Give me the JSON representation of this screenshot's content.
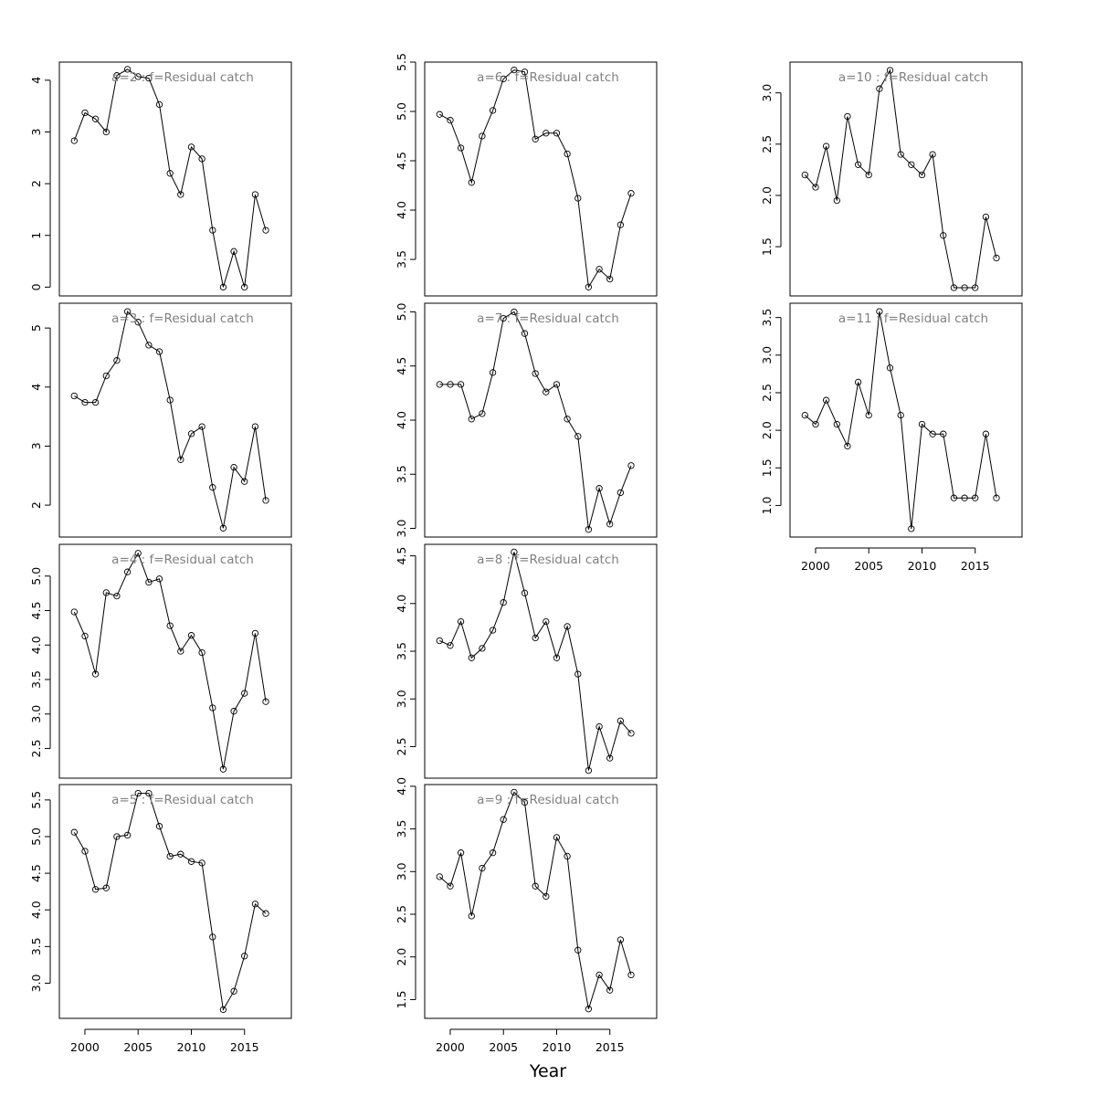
{
  "figure": {
    "xlabel": "Year"
  },
  "chart_data": [
    {
      "type": "line",
      "title": "a=2  :  f=Residual catch",
      "x": [
        1999,
        2000,
        2001,
        2002,
        2003,
        2004,
        2005,
        2006,
        2007,
        2008,
        2009,
        2010,
        2011,
        2012,
        2013,
        2014,
        2015,
        2016,
        2017
      ],
      "values": [
        2.83,
        3.37,
        3.25,
        3.0,
        4.09,
        4.21,
        4.07,
        4.04,
        3.53,
        2.2,
        1.79,
        2.71,
        2.48,
        1.1,
        0.0,
        0.69,
        0.0,
        1.79,
        1.1
      ],
      "xlim": [
        1997.6,
        2019.4
      ],
      "ylim": [
        -0.17,
        4.35
      ],
      "yticks": [
        0,
        1,
        2,
        3,
        4
      ],
      "ytick_labels": [
        "0",
        "1",
        "2",
        "3",
        "4"
      ],
      "xticks": [
        2000,
        2005,
        2010,
        2015
      ],
      "xtick_labels": []
    },
    {
      "type": "line",
      "title": "a=3  :  f=Residual catch",
      "x": [
        1999,
        2000,
        2001,
        2002,
        2003,
        2004,
        2005,
        2006,
        2007,
        2008,
        2009,
        2010,
        2011,
        2012,
        2013,
        2014,
        2015,
        2016,
        2017
      ],
      "values": [
        3.85,
        3.74,
        3.74,
        4.19,
        4.45,
        5.28,
        5.1,
        4.71,
        4.6,
        3.78,
        2.77,
        3.21,
        3.33,
        2.3,
        1.61,
        2.64,
        2.4,
        3.33,
        2.08
      ],
      "xlim": [
        1997.6,
        2019.4
      ],
      "ylim": [
        1.46,
        5.42
      ],
      "yticks": [
        2,
        3,
        4,
        5
      ],
      "ytick_labels": [
        "2",
        "3",
        "4",
        "5"
      ],
      "xticks": [
        2000,
        2005,
        2010,
        2015
      ],
      "xtick_labels": []
    },
    {
      "type": "line",
      "title": "a=4  :  f=Residual catch",
      "x": [
        1999,
        2000,
        2001,
        2002,
        2003,
        2004,
        2005,
        2006,
        2007,
        2008,
        2009,
        2010,
        2011,
        2012,
        2013,
        2014,
        2015,
        2016,
        2017
      ],
      "values": [
        4.48,
        4.13,
        3.58,
        4.76,
        4.71,
        5.06,
        5.33,
        4.91,
        4.96,
        4.28,
        3.91,
        4.14,
        3.89,
        3.09,
        2.2,
        3.04,
        3.3,
        4.17,
        3.18
      ],
      "xlim": [
        1997.6,
        2019.4
      ],
      "ylim": [
        2.07,
        5.46
      ],
      "yticks": [
        2.5,
        3.0,
        3.5,
        4.0,
        4.5,
        5.0
      ],
      "ytick_labels": [
        "2.5",
        "3.0",
        "3.5",
        "4.0",
        "4.5",
        "5.0"
      ],
      "xticks": [
        2000,
        2005,
        2010,
        2015
      ],
      "xtick_labels": []
    },
    {
      "type": "line",
      "title": "a=5  :  f=Residual catch",
      "x": [
        1999,
        2000,
        2001,
        2002,
        2003,
        2004,
        2005,
        2006,
        2007,
        2008,
        2009,
        2010,
        2011,
        2012,
        2013,
        2014,
        2015,
        2016,
        2017
      ],
      "values": [
        5.06,
        4.8,
        4.28,
        4.3,
        5.0,
        5.02,
        5.59,
        5.59,
        5.14,
        4.73,
        4.76,
        4.66,
        4.64,
        3.63,
        2.64,
        2.89,
        3.37,
        4.08,
        3.95
      ],
      "xlim": [
        1997.6,
        2019.4
      ],
      "ylim": [
        2.52,
        5.71
      ],
      "yticks": [
        3.0,
        3.5,
        4.0,
        4.5,
        5.0,
        5.5
      ],
      "ytick_labels": [
        "3.0",
        "3.5",
        "4.0",
        "4.5",
        "5.0",
        "5.5"
      ],
      "xticks": [
        2000,
        2005,
        2010,
        2015
      ],
      "xtick_labels": [
        "2000",
        "2005",
        "2010",
        "2015"
      ]
    },
    {
      "type": "line",
      "title": "a=6  :  f=Residual catch",
      "x": [
        1999,
        2000,
        2001,
        2002,
        2003,
        2004,
        2005,
        2006,
        2007,
        2008,
        2009,
        2010,
        2011,
        2012,
        2013,
        2014,
        2015,
        2016,
        2017
      ],
      "values": [
        4.97,
        4.91,
        4.63,
        4.28,
        4.75,
        5.01,
        5.33,
        5.42,
        5.4,
        4.72,
        4.78,
        4.78,
        4.57,
        4.12,
        3.22,
        3.4,
        3.3,
        3.85,
        4.17
      ],
      "xlim": [
        1997.6,
        2019.4
      ],
      "ylim": [
        3.13,
        5.5
      ],
      "yticks": [
        3.5,
        4.0,
        4.5,
        5.0,
        5.5
      ],
      "ytick_labels": [
        "3.5",
        "4.0",
        "4.5",
        "5.0",
        "5.5"
      ],
      "xticks": [
        2000,
        2005,
        2010,
        2015
      ],
      "xtick_labels": []
    },
    {
      "type": "line",
      "title": "a=7  :  f=Residual catch",
      "x": [
        1999,
        2000,
        2001,
        2002,
        2003,
        2004,
        2005,
        2006,
        2007,
        2008,
        2009,
        2010,
        2011,
        2012,
        2013,
        2014,
        2015,
        2016,
        2017
      ],
      "values": [
        4.33,
        4.33,
        4.33,
        4.01,
        4.06,
        4.44,
        4.94,
        5.0,
        4.8,
        4.43,
        4.26,
        4.33,
        4.01,
        3.85,
        2.99,
        3.37,
        3.04,
        3.33,
        3.58
      ],
      "xlim": [
        1997.6,
        2019.4
      ],
      "ylim": [
        2.92,
        5.08
      ],
      "yticks": [
        3.0,
        3.5,
        4.0,
        4.5,
        5.0
      ],
      "ytick_labels": [
        "3.0",
        "3.5",
        "4.0",
        "4.5",
        "5.0"
      ],
      "xticks": [
        2000,
        2005,
        2010,
        2015
      ],
      "xtick_labels": []
    },
    {
      "type": "line",
      "title": "a=8  :  f=Residual catch",
      "x": [
        1999,
        2000,
        2001,
        2002,
        2003,
        2004,
        2005,
        2006,
        2007,
        2008,
        2009,
        2010,
        2011,
        2012,
        2013,
        2014,
        2015,
        2016,
        2017
      ],
      "values": [
        3.61,
        3.56,
        3.81,
        3.43,
        3.53,
        3.72,
        4.01,
        4.54,
        4.11,
        3.64,
        3.81,
        3.43,
        3.76,
        3.26,
        2.25,
        2.71,
        2.38,
        2.77,
        2.64
      ],
      "xlim": [
        1997.6,
        2019.4
      ],
      "ylim": [
        2.17,
        4.62
      ],
      "yticks": [
        2.5,
        3.0,
        3.5,
        4.0,
        4.5
      ],
      "ytick_labels": [
        "2.5",
        "3.0",
        "3.5",
        "4.0",
        "4.5"
      ],
      "xticks": [
        2000,
        2005,
        2010,
        2015
      ],
      "xtick_labels": []
    },
    {
      "type": "line",
      "title": "a=9  :  f=Residual catch",
      "x": [
        1999,
        2000,
        2001,
        2002,
        2003,
        2004,
        2005,
        2006,
        2007,
        2008,
        2009,
        2010,
        2011,
        2012,
        2013,
        2014,
        2015,
        2016,
        2017
      ],
      "values": [
        2.94,
        2.83,
        3.22,
        2.48,
        3.04,
        3.22,
        3.61,
        3.93,
        3.81,
        2.83,
        2.71,
        3.4,
        3.18,
        2.08,
        1.39,
        1.79,
        1.61,
        2.2,
        1.79
      ],
      "xlim": [
        1997.6,
        2019.4
      ],
      "ylim": [
        1.28,
        4.02
      ],
      "yticks": [
        1.5,
        2.0,
        2.5,
        3.0,
        3.5,
        4.0
      ],
      "ytick_labels": [
        "1.5",
        "2.0",
        "2.5",
        "3.0",
        "3.5",
        "4.0"
      ],
      "xticks": [
        2000,
        2005,
        2010,
        2015
      ],
      "xtick_labels": [
        "2000",
        "2005",
        "2010",
        "2015"
      ]
    },
    {
      "type": "line",
      "title": "a=10  :  f=Residual catch",
      "x": [
        1999,
        2000,
        2001,
        2002,
        2003,
        2004,
        2005,
        2006,
        2007,
        2008,
        2009,
        2010,
        2011,
        2012,
        2013,
        2014,
        2015,
        2016,
        2017
      ],
      "values": [
        2.2,
        2.08,
        2.48,
        1.95,
        2.77,
        2.3,
        2.2,
        3.04,
        3.22,
        2.4,
        2.3,
        2.2,
        2.4,
        1.61,
        1.1,
        1.1,
        1.1,
        1.79,
        1.39
      ],
      "xlim": [
        1997.6,
        2019.4
      ],
      "ylim": [
        1.02,
        3.3
      ],
      "yticks": [
        1.5,
        2.0,
        2.5,
        3.0
      ],
      "ytick_labels": [
        "1.5",
        "2.0",
        "2.5",
        "3.0"
      ],
      "xticks": [
        2000,
        2005,
        2010,
        2015
      ],
      "xtick_labels": []
    },
    {
      "type": "line",
      "title": "a=11  :  f=Residual catch",
      "x": [
        1999,
        2000,
        2001,
        2002,
        2003,
        2004,
        2005,
        2006,
        2007,
        2008,
        2009,
        2010,
        2011,
        2012,
        2013,
        2014,
        2015,
        2016,
        2017
      ],
      "values": [
        2.2,
        2.08,
        2.4,
        2.08,
        1.79,
        2.64,
        2.2,
        3.58,
        2.83,
        2.2,
        0.69,
        2.08,
        1.95,
        1.95,
        1.1,
        1.1,
        1.1,
        1.95,
        1.1
      ],
      "xlim": [
        1997.6,
        2019.4
      ],
      "ylim": [
        0.58,
        3.69
      ],
      "yticks": [
        1.0,
        1.5,
        2.0,
        2.5,
        3.0,
        3.5
      ],
      "ytick_labels": [
        "1.0",
        "1.5",
        "2.0",
        "2.5",
        "3.0",
        "3.5"
      ],
      "xticks": [
        2000,
        2005,
        2010,
        2015
      ],
      "xtick_labels": [
        "2000",
        "2005",
        "2010",
        "2015"
      ]
    }
  ]
}
